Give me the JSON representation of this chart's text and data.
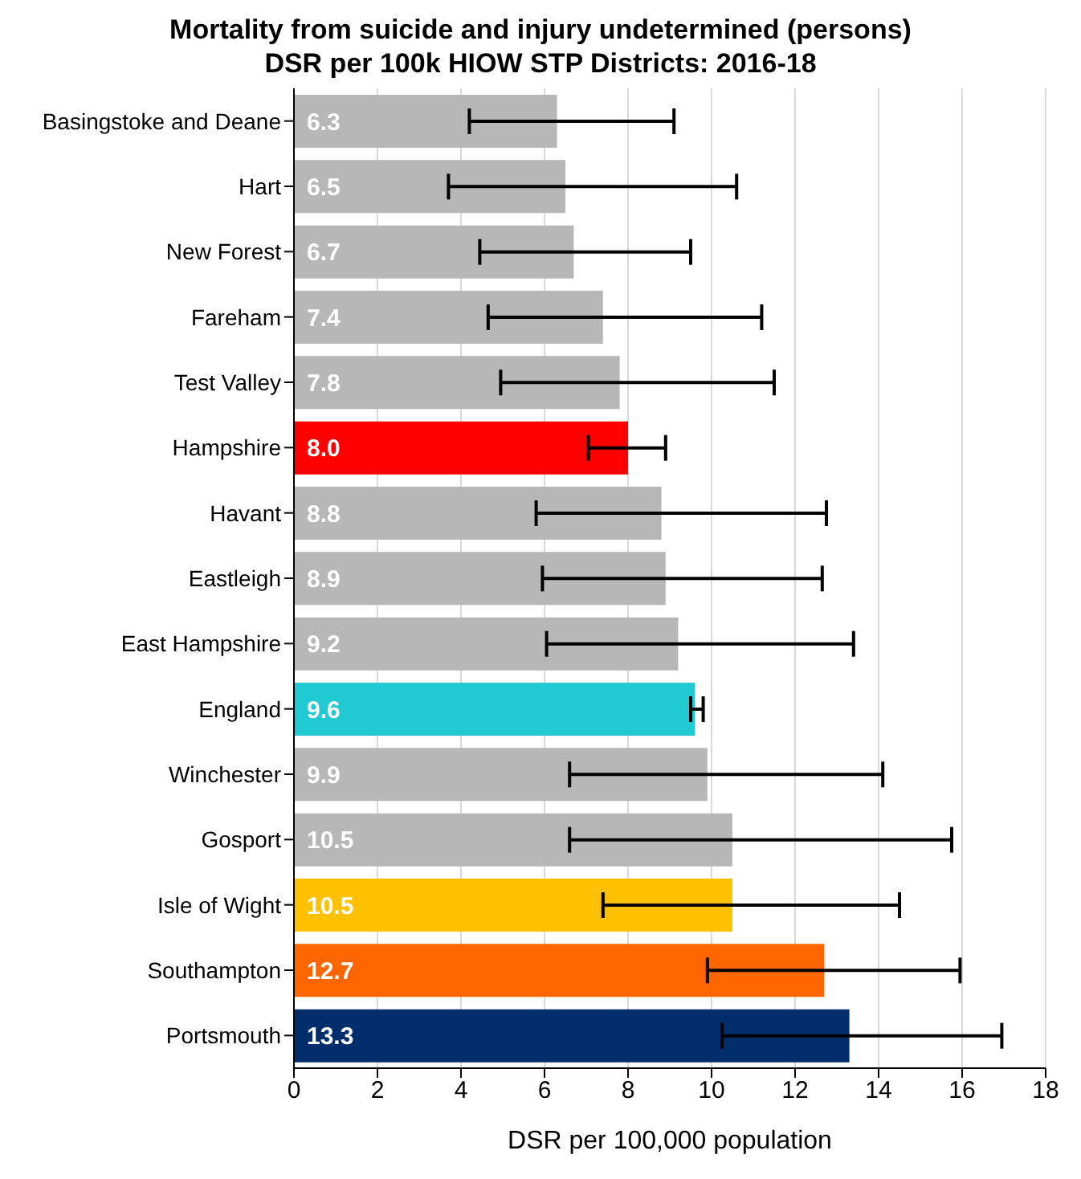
{
  "chart_data": {
    "type": "bar",
    "orientation": "horizontal",
    "title": "Mortality from suicide and injury undetermined (persons)",
    "subtitle": "DSR per 100k HIOW STP Districts: 2016-18",
    "xlabel": "DSR per 100,000 population",
    "categories": [
      "Basingstoke and Deane",
      "Hart",
      "New Forest",
      "Fareham",
      "Test Valley",
      "Hampshire",
      "Havant",
      "Eastleigh",
      "East Hampshire",
      "England",
      "Winchester",
      "Gosport",
      "Isle of Wight",
      "Southampton",
      "Portsmouth"
    ],
    "values": [
      6.3,
      6.5,
      6.7,
      7.4,
      7.8,
      8.0,
      8.8,
      8.9,
      9.2,
      9.6,
      9.9,
      10.5,
      10.5,
      12.7,
      13.3
    ],
    "value_labels": [
      "6.3",
      "6.5",
      "6.7",
      "7.4",
      "7.8",
      "8.0",
      "8.8",
      "8.9",
      "9.2",
      "9.6",
      "9.9",
      "10.5",
      "10.5",
      "12.7",
      "13.3"
    ],
    "colors": [
      "#b7b7b7",
      "#b7b7b7",
      "#b7b7b7",
      "#b7b7b7",
      "#b7b7b7",
      "#ff0000",
      "#b7b7b7",
      "#b7b7b7",
      "#b7b7b7",
      "#21cad3",
      "#b7b7b7",
      "#b7b7b7",
      "#ffc000",
      "#ff6600",
      "#002e6c"
    ],
    "errors": [
      [
        4.2,
        9.1
      ],
      [
        3.7,
        10.6
      ],
      [
        4.45,
        9.5
      ],
      [
        4.65,
        11.2
      ],
      [
        4.95,
        11.5
      ],
      [
        7.05,
        8.9
      ],
      [
        5.8,
        12.75
      ],
      [
        5.95,
        12.65
      ],
      [
        6.05,
        13.4
      ],
      [
        9.5,
        9.8
      ],
      [
        6.6,
        14.1
      ],
      [
        6.6,
        15.75
      ],
      [
        7.4,
        14.5
      ],
      [
        9.9,
        15.95
      ],
      [
        10.25,
        16.95
      ]
    ],
    "xlim": [
      0,
      18
    ],
    "xticks": [
      0,
      2,
      4,
      6,
      8,
      10,
      12,
      14,
      16,
      18
    ],
    "grid": "x",
    "legend": false
  }
}
